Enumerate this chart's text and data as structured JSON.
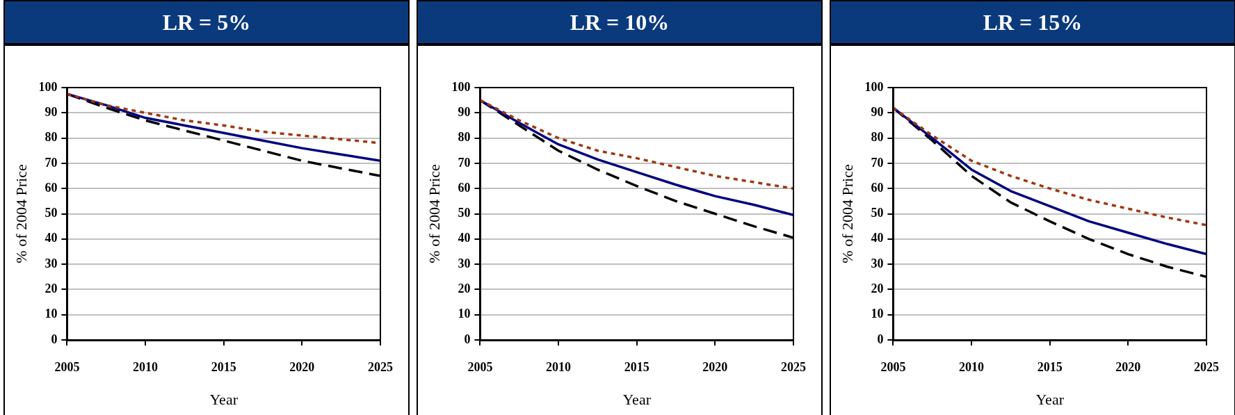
{
  "chart_data": [
    {
      "type": "line",
      "title": "LR = 5%",
      "xlabel": "Year",
      "ylabel": "% of 2004 Price",
      "x": [
        2005,
        2007.5,
        2010,
        2012.5,
        2015,
        2017.5,
        2020,
        2022.5,
        2025
      ],
      "xlim": [
        2005,
        2025
      ],
      "xticks": [
        2005,
        2010,
        2015,
        2020,
        2025
      ],
      "ylim": [
        0,
        100
      ],
      "yticks": [
        0,
        10,
        20,
        30,
        40,
        50,
        60,
        70,
        80,
        90,
        100
      ],
      "grid": "y",
      "marker": "none",
      "series": [
        {
          "color": "#a0360e",
          "line_style": "dotted",
          "values": [
            97.5,
            93,
            90,
            87,
            85,
            82.5,
            81,
            79.5,
            78
          ]
        },
        {
          "color": "#000080",
          "line_style": "solid",
          "values": [
            97.5,
            93,
            88,
            85,
            82,
            79,
            76,
            73.5,
            71
          ]
        },
        {
          "color": "#000000",
          "line_style": "dashed",
          "values": [
            97.5,
            92,
            87,
            83,
            79,
            75,
            71,
            68,
            65
          ]
        }
      ]
    },
    {
      "type": "line",
      "title": "LR = 10%",
      "xlabel": "Year",
      "ylabel": "% of 2004 Price",
      "x": [
        2005,
        2007.5,
        2010,
        2012.5,
        2015,
        2017.5,
        2020,
        2022.5,
        2025
      ],
      "xlim": [
        2005,
        2025
      ],
      "xticks": [
        2005,
        2010,
        2015,
        2020,
        2025
      ],
      "ylim": [
        0,
        100
      ],
      "yticks": [
        0,
        10,
        20,
        30,
        40,
        50,
        60,
        70,
        80,
        90,
        100
      ],
      "grid": "y",
      "marker": "none",
      "series": [
        {
          "color": "#a0360e",
          "line_style": "dotted",
          "values": [
            95,
            87,
            80,
            75,
            72,
            68.5,
            65,
            62.5,
            60
          ]
        },
        {
          "color": "#000080",
          "line_style": "solid",
          "values": [
            95,
            86,
            77.5,
            71.5,
            66.5,
            61.5,
            57,
            53.5,
            49.5
          ]
        },
        {
          "color": "#000000",
          "line_style": "dashed",
          "values": [
            95,
            85,
            75,
            67.5,
            61,
            55,
            50,
            45,
            40.5
          ]
        }
      ]
    },
    {
      "type": "line",
      "title": "LR = 15%",
      "xlabel": "Year",
      "ylabel": "% of 2004 Price",
      "x": [
        2005,
        2007.5,
        2010,
        2012.5,
        2015,
        2017.5,
        2020,
        2022.5,
        2025
      ],
      "xlim": [
        2005,
        2025
      ],
      "xticks": [
        2005,
        2010,
        2015,
        2020,
        2025
      ],
      "ylim": [
        0,
        100
      ],
      "yticks": [
        0,
        10,
        20,
        30,
        40,
        50,
        60,
        70,
        80,
        90,
        100
      ],
      "grid": "y",
      "marker": "none",
      "series": [
        {
          "color": "#a0360e",
          "line_style": "dotted",
          "values": [
            92,
            81,
            71,
            65,
            60,
            55.5,
            52,
            48.5,
            45.5
          ]
        },
        {
          "color": "#000080",
          "line_style": "solid",
          "values": [
            92,
            80,
            67.5,
            59,
            53,
            47,
            42.5,
            38,
            34
          ]
        },
        {
          "color": "#000000",
          "line_style": "dashed",
          "values": [
            92,
            79,
            65,
            54.5,
            47,
            40,
            34,
            29,
            25
          ]
        }
      ]
    }
  ]
}
